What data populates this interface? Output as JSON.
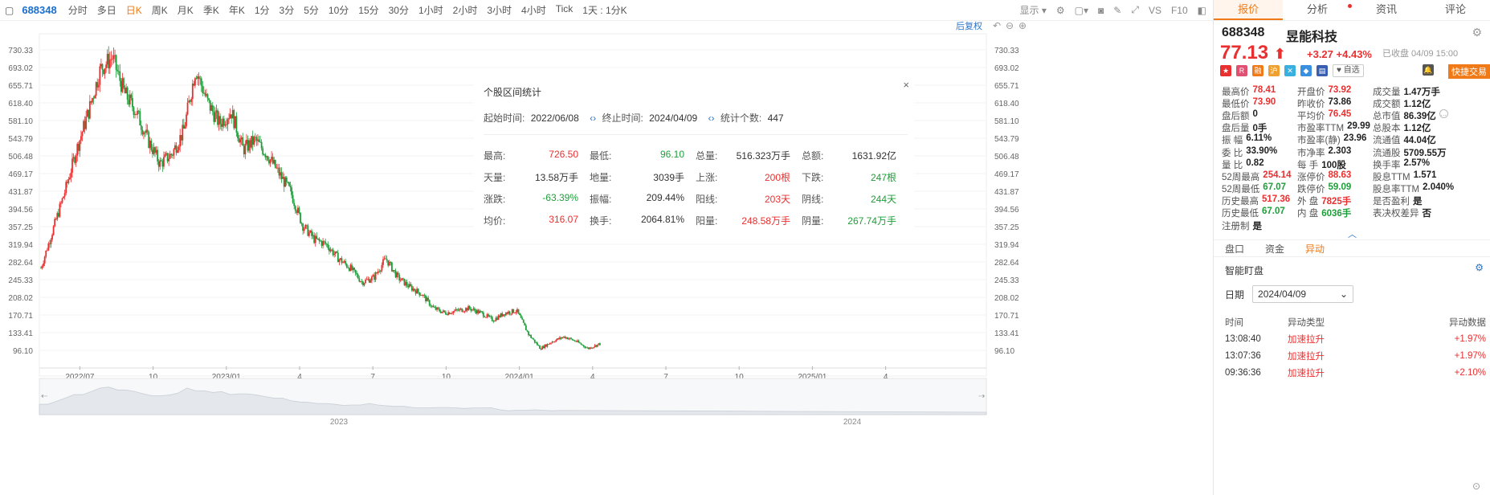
{
  "toolbar": {
    "code": "688348",
    "items": [
      {
        "label": "分时",
        "active": false
      },
      {
        "label": "多日",
        "active": false
      },
      {
        "label": "日K",
        "active": true
      },
      {
        "label": "周K",
        "active": false
      },
      {
        "label": "月K",
        "active": false
      },
      {
        "label": "季K",
        "active": false
      },
      {
        "label": "年K",
        "active": false
      },
      {
        "label": "1分",
        "active": false
      },
      {
        "label": "3分",
        "active": false
      },
      {
        "label": "5分",
        "active": false
      },
      {
        "label": "10分",
        "active": false
      },
      {
        "label": "15分",
        "active": false
      },
      {
        "label": "30分",
        "active": false
      },
      {
        "label": "1小时",
        "active": false
      },
      {
        "label": "2小时",
        "active": false
      },
      {
        "label": "3小时",
        "active": false
      },
      {
        "label": "4小时",
        "active": false
      },
      {
        "label": "Tick",
        "active": false
      },
      {
        "label": "1天 : 1分K",
        "active": false
      }
    ],
    "display_label": "显示",
    "vs_label": "VS",
    "f10_label": "F10",
    "restore_label": "后复权"
  },
  "right_tabs": [
    "报价",
    "分析",
    "资讯",
    "评论"
  ],
  "stock": {
    "code": "688348",
    "name": "昱能科技",
    "price": "77.13",
    "change": "+3.27",
    "change_pct": "+4.43%",
    "closed": "已收盘 04/09 15:00",
    "zixuan": "自选",
    "quick_trade": "快捷交易"
  },
  "quotes": [
    [
      {
        "l": "最高价",
        "v": "78.41",
        "c": "red"
      },
      {
        "l": "开盘价",
        "v": "73.92",
        "c": "red"
      },
      {
        "l": "成交量",
        "v": "1.47万手",
        "c": ""
      }
    ],
    [
      {
        "l": "最低价",
        "v": "73.90",
        "c": "red"
      },
      {
        "l": "昨收价",
        "v": "73.86",
        "c": ""
      },
      {
        "l": "成交额",
        "v": "1.12亿",
        "c": ""
      }
    ],
    [
      {
        "l": "盘后额",
        "v": "0",
        "c": ""
      },
      {
        "l": "平均价",
        "v": "76.45",
        "c": "red"
      },
      {
        "l": "总市值",
        "v": "86.39亿",
        "c": ""
      }
    ],
    [
      {
        "l": "盘后量",
        "v": "0手",
        "c": ""
      },
      {
        "l": "市盈率TTM",
        "v": "29.99",
        "c": ""
      },
      {
        "l": "总股本",
        "v": "1.12亿",
        "c": ""
      }
    ],
    [
      {
        "l": "振 幅",
        "v": "6.11%",
        "c": ""
      },
      {
        "l": "市盈率(静)",
        "v": "23.96",
        "c": ""
      },
      {
        "l": "流通值",
        "v": "44.04亿",
        "c": ""
      }
    ],
    [
      {
        "l": "委 比",
        "v": "33.90%",
        "c": ""
      },
      {
        "l": "市净率",
        "v": "2.303",
        "c": ""
      },
      {
        "l": "流通股",
        "v": "5709.55万",
        "c": ""
      }
    ],
    [
      {
        "l": "量 比",
        "v": "0.82",
        "c": ""
      },
      {
        "l": "每 手",
        "v": "100股",
        "c": ""
      },
      {
        "l": "换手率",
        "v": "2.57%",
        "c": ""
      }
    ],
    [
      {
        "l": "52周最高",
        "v": "254.14",
        "c": "red"
      },
      {
        "l": "涨停价",
        "v": "88.63",
        "c": "red"
      },
      {
        "l": "股息TTM",
        "v": "1.571",
        "c": ""
      }
    ],
    [
      {
        "l": "52周最低",
        "v": "67.07",
        "c": "green"
      },
      {
        "l": "跌停价",
        "v": "59.09",
        "c": "green"
      },
      {
        "l": "股息率TTM",
        "v": "2.040%",
        "c": ""
      }
    ],
    [
      {
        "l": "历史最高",
        "v": "517.36",
        "c": "red"
      },
      {
        "l": "外 盘",
        "v": "7825手",
        "c": "red"
      },
      {
        "l": "是否盈利",
        "v": "是",
        "c": ""
      }
    ],
    [
      {
        "l": "历史最低",
        "v": "67.07",
        "c": "green"
      },
      {
        "l": "内 盘",
        "v": "6036手",
        "c": "green"
      },
      {
        "l": "表决权差异",
        "v": "否",
        "c": ""
      }
    ],
    [
      {
        "l": "注册制",
        "v": "是",
        "c": ""
      }
    ]
  ],
  "sub_tabs": [
    "盘口",
    "资金",
    "异动"
  ],
  "smart": {
    "title": "智能盯盘",
    "date_label": "日期",
    "date_value": "2024/04/09",
    "headers": [
      "时间",
      "异动类型",
      "异动数据"
    ],
    "rows": [
      {
        "time": "13:08:40",
        "type": "加速拉升",
        "data": "+1.97%"
      },
      {
        "time": "13:07:36",
        "type": "加速拉升",
        "data": "+1.97%"
      },
      {
        "time": "09:36:36",
        "type": "加速拉升",
        "data": "+2.10%"
      }
    ]
  },
  "stat": {
    "title": "个股区间统计",
    "start_label": "起始时间:",
    "start": "2022/06/08",
    "end_label": "终止时间:",
    "end": "2024/04/09",
    "count_label": "统计个数:",
    "count": "447",
    "cells": [
      [
        {
          "l": "最高:",
          "v": "726.50",
          "c": "red"
        },
        {
          "l": "最低:",
          "v": "96.10",
          "c": "green"
        },
        {
          "l": "总量:",
          "v": "516.323万手",
          "c": ""
        },
        {
          "l": "总额:",
          "v": "1631.92亿",
          "c": ""
        }
      ],
      [
        {
          "l": "天量:",
          "v": "13.58万手",
          "c": ""
        },
        {
          "l": "地量:",
          "v": "3039手",
          "c": ""
        },
        {
          "l": "上涨:",
          "v": "200根",
          "c": "red"
        },
        {
          "l": "下跌:",
          "v": "247根",
          "c": "green"
        }
      ],
      [
        {
          "l": "涨跌:",
          "v": "-63.39%",
          "c": "green"
        },
        {
          "l": "振幅:",
          "v": "209.44%",
          "c": ""
        },
        {
          "l": "阳线:",
          "v": "203天",
          "c": "red"
        },
        {
          "l": "阴线:",
          "v": "244天",
          "c": "green"
        }
      ],
      [
        {
          "l": "均价:",
          "v": "316.07",
          "c": "red"
        },
        {
          "l": "换手:",
          "v": "2064.81%",
          "c": ""
        },
        {
          "l": "阳量:",
          "v": "248.58万手",
          "c": "red"
        },
        {
          "l": "阴量:",
          "v": "267.74万手",
          "c": "green"
        }
      ]
    ]
  },
  "chart_data": {
    "type": "candlestick",
    "y_ticks": [
      "730.33",
      "693.02",
      "655.71",
      "618.40",
      "581.10",
      "543.79",
      "506.48",
      "469.17",
      "431.87",
      "394.56",
      "357.25",
      "319.94",
      "282.64",
      "245.33",
      "208.02",
      "170.71",
      "133.41",
      "96.10"
    ],
    "x_ticks": [
      "2022/07",
      "10",
      "2023/01",
      "4",
      "7",
      "10",
      "2024/01",
      "4",
      "7",
      "10",
      "2025/01",
      "4"
    ],
    "ylim": [
      96.1,
      730.33
    ],
    "overview_labels": [
      "2023",
      "2024"
    ],
    "close_path": [
      [
        "2022/06",
        270
      ],
      [
        "2022/06",
        350
      ],
      [
        "2022/07",
        430
      ],
      [
        "2022/07",
        520
      ],
      [
        "2022/07",
        600
      ],
      [
        "2022/08",
        690
      ],
      [
        "2022/08",
        715
      ],
      [
        "2022/08",
        640
      ],
      [
        "2022/09",
        600
      ],
      [
        "2022/09",
        540
      ],
      [
        "2022/10",
        490
      ],
      [
        "2022/10",
        510
      ],
      [
        "2022/11",
        560
      ],
      [
        "2022/11",
        690
      ],
      [
        "2022/12",
        620
      ],
      [
        "2022/12",
        575
      ],
      [
        "2023/01",
        600
      ],
      [
        "2023/01",
        520
      ],
      [
        "2023/02",
        540
      ],
      [
        "2023/02",
        510
      ],
      [
        "2023/03",
        470
      ],
      [
        "2023/03",
        430
      ],
      [
        "2023/04",
        360
      ],
      [
        "2023/04",
        330
      ],
      [
        "2023/05",
        320
      ],
      [
        "2023/05",
        290
      ],
      [
        "2023/06",
        270
      ],
      [
        "2023/06",
        240
      ],
      [
        "2023/07",
        250
      ],
      [
        "2023/07",
        290
      ],
      [
        "2023/08",
        250
      ],
      [
        "2023/08",
        230
      ],
      [
        "2023/09",
        215
      ],
      [
        "2023/09",
        185
      ],
      [
        "2023/10",
        175
      ],
      [
        "2023/10",
        180
      ],
      [
        "2023/11",
        185
      ],
      [
        "2023/11",
        175
      ],
      [
        "2023/12",
        160
      ],
      [
        "2023/12",
        175
      ],
      [
        "2024/01",
        180
      ],
      [
        "2024/01",
        130
      ],
      [
        "2024/02",
        100
      ],
      [
        "2024/02",
        115
      ],
      [
        "2024/03",
        125
      ],
      [
        "2024/03",
        115
      ],
      [
        "2024/04",
        100
      ],
      [
        "2024/04",
        110
      ]
    ]
  }
}
